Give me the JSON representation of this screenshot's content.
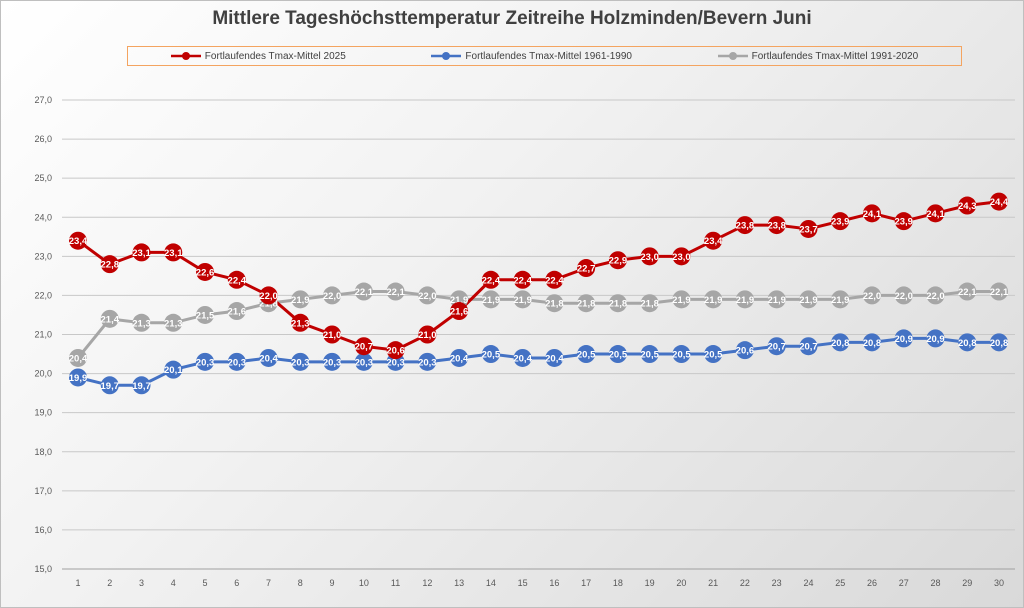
{
  "chart_data": {
    "type": "line",
    "title": "Mittlere Tageshöchsttemperatur Zeitreihe Holzminden/Bevern Juni",
    "xlabel": "",
    "ylabel": "",
    "x": [
      1,
      2,
      3,
      4,
      5,
      6,
      7,
      8,
      9,
      10,
      11,
      12,
      13,
      14,
      15,
      16,
      17,
      18,
      19,
      20,
      21,
      22,
      23,
      24,
      25,
      26,
      27,
      28,
      29,
      30
    ],
    "ylim": [
      15,
      27
    ],
    "yticks": [
      "15,0",
      "16,0",
      "17,0",
      "18,0",
      "19,0",
      "20,0",
      "21,0",
      "22,0",
      "23,0",
      "24,0",
      "25,0",
      "26,0",
      "27,0"
    ],
    "grid": true,
    "legend_position": "top",
    "series": [
      {
        "name": "Fortlaufendes Tmax-Mittel 2025",
        "color": "#c00000",
        "values": [
          23.4,
          22.8,
          23.1,
          23.1,
          22.6,
          22.4,
          22.0,
          21.3,
          21.0,
          20.7,
          20.6,
          21.0,
          21.6,
          22.4,
          22.4,
          22.4,
          22.7,
          22.9,
          23.0,
          23.0,
          23.4,
          23.8,
          23.8,
          23.7,
          23.9,
          24.1,
          23.9,
          24.1,
          24.3,
          24.4
        ]
      },
      {
        "name": "Fortlaufendes Tmax-Mittel 1961-1990",
        "color": "#4472c4",
        "values": [
          19.9,
          19.7,
          19.7,
          20.1,
          20.3,
          20.3,
          20.4,
          20.3,
          20.3,
          20.3,
          20.3,
          20.3,
          20.4,
          20.5,
          20.4,
          20.4,
          20.5,
          20.5,
          20.5,
          20.5,
          20.5,
          20.6,
          20.7,
          20.7,
          20.8,
          20.8,
          20.9,
          20.9,
          20.8,
          20.8
        ]
      },
      {
        "name": "Fortlaufendes Tmax-Mittel 1991-2020",
        "color": "#a6a6a6",
        "values": [
          20.4,
          21.4,
          21.3,
          21.3,
          21.5,
          21.6,
          21.8,
          21.9,
          22.0,
          22.1,
          22.1,
          22.0,
          21.9,
          21.9,
          21.9,
          21.8,
          21.8,
          21.8,
          21.8,
          21.9,
          21.9,
          21.9,
          21.9,
          21.9,
          21.9,
          22.0,
          22.0,
          22.0,
          22.1,
          22.1
        ]
      }
    ]
  }
}
